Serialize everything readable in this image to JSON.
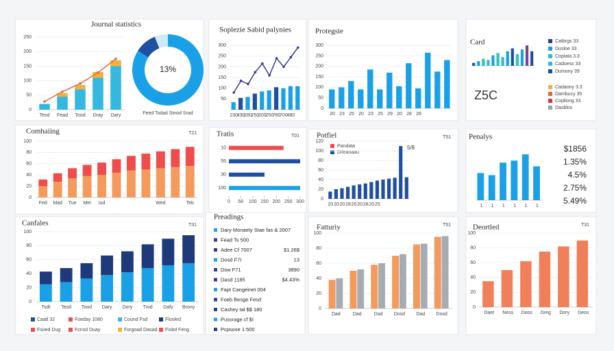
{
  "chart_data": [
    {
      "type": "bar",
      "title": "Journal statistics",
      "stacked": true,
      "categories": [
        "Tesd",
        "Fead",
        "Tood",
        "Dray",
        "Dary"
      ],
      "series": [
        {
          "color": "#35b8e0",
          "values": [
            20,
            45,
            70,
            110,
            150
          ]
        },
        {
          "color": "#f0b23a",
          "values": [
            0,
            12,
            15,
            20,
            20
          ]
        },
        {
          "type": "line",
          "color": "#e8643c",
          "values": [
            28,
            62,
            90,
            128,
            175
          ]
        }
      ],
      "ylim": [
        0,
        260
      ],
      "yticks": [
        0,
        50,
        100,
        150,
        200,
        250
      ]
    },
    {
      "type": "pie",
      "values": [
        84,
        10,
        6
      ],
      "colors": [
        "#1aa0e6",
        "#1f4fa0",
        "#cfe9f7"
      ],
      "center_label": "13%",
      "caption": "Feed Tsdad Stnod Srad"
    },
    {
      "type": "bar",
      "title": "Soplezie Sabid palynies",
      "categories": [
        "230",
        "430",
        "280",
        "250",
        "200",
        "250",
        "780",
        "700",
        "480",
        null
      ],
      "series": [
        {
          "color": "#1aa0e6",
          "colors": [
            "#1aa0e6",
            "#1f4fa0",
            "#1aa0e6",
            "#1f4fa0",
            "#1aa0e6",
            "#1aa0e6",
            "#1f4fa0",
            "#1aa0e6",
            "#1aa0e6",
            "#1aa0e6"
          ],
          "values": [
            35,
            55,
            60,
            75,
            85,
            90,
            105,
            100,
            110,
            110
          ]
        },
        {
          "type": "line",
          "color": "#3a3a8c",
          "values": [
            80,
            135,
            120,
            175,
            215,
            160,
            240,
            200,
            245,
            290
          ]
        }
      ],
      "ylim": [
        0,
        320
      ],
      "yticks": [
        50,
        100,
        150,
        200,
        250,
        300
      ]
    },
    {
      "type": "bar",
      "title": "Protegsie",
      "categories": [
        "20",
        "23",
        "25",
        "20",
        "23",
        "25",
        "29",
        "20",
        "28",
        "28",
        null,
        null,
        null
      ],
      "series": [
        {
          "color": "#1aa0e6",
          "values": [
            90,
            100,
            130,
            90,
            185,
            90,
            170,
            105,
            215,
            95,
            265,
            175,
            230
          ]
        }
      ],
      "ylim": [
        0,
        320
      ],
      "yticks": [
        0,
        50,
        100,
        150,
        200,
        250,
        300
      ]
    },
    {
      "type": "bar",
      "title": "Card",
      "annotation": "Z5C",
      "categories": [
        null,
        null,
        null,
        null,
        null,
        null,
        null,
        null,
        null,
        null,
        null,
        null,
        null
      ],
      "series": [
        {
          "color": "#1aa0e6",
          "colors": [
            "#1f4fa0",
            "#1aa0e6",
            "#2cc4b4",
            "#35b8e0",
            "#1aa0e6",
            "#2cc4b4",
            "#35b8e0",
            "#1aa0e6",
            "#1f4fa0",
            "#2cc4b4",
            "#1aa0e6",
            "#7b3fa0",
            "#1f4fa0"
          ],
          "values": [
            5,
            8,
            12,
            10,
            18,
            22,
            15,
            25,
            30,
            20,
            28,
            35,
            25
          ]
        }
      ],
      "ylim": [
        0,
        40
      ],
      "legend": [
        {
          "label": "Catbrgs 33",
          "color": "#3a3a8c"
        },
        {
          "label": "Dusloe 33",
          "color": "#1aa0e6"
        },
        {
          "label": "Coplata 3.3",
          "color": "#2cc4b4"
        },
        {
          "label": "Cadoess 33",
          "color": "#35b8e0"
        },
        {
          "label": "Dumony 39",
          "color": "#1f4fa0"
        }
      ],
      "legend2": [
        {
          "label": "Cadaony 3.3",
          "color": "#f0b23a"
        },
        {
          "label": "Dambucy 35",
          "color": "#e8643c"
        },
        {
          "label": "Copliong 33",
          "color": "#d33a3a"
        },
        {
          "label": "Dasblos",
          "color": "#9aa0a6"
        }
      ]
    },
    {
      "type": "bar",
      "title": "Comhaiing",
      "corner": "T21",
      "stacked": true,
      "categories": [
        "Fed",
        "Mad",
        "Tue",
        "Mei",
        "Iud",
        null,
        null,
        null,
        "Wed",
        null,
        "Teb"
      ],
      "series": [
        {
          "color": "#f39a5c",
          "values": [
            20,
            28,
            34,
            38,
            40,
            44,
            48,
            50,
            52,
            54,
            56
          ]
        },
        {
          "color": "#ef4c4c",
          "values": [
            12,
            15,
            18,
            20,
            22,
            24,
            26,
            28,
            30,
            32,
            34
          ]
        }
      ],
      "ylim": [
        0,
        100
      ],
      "yticks": [
        0,
        20,
        40,
        60,
        80,
        100
      ]
    },
    {
      "type": "hbar",
      "title": "Tratis",
      "corner": "T01",
      "categories": [
        "10",
        "55",
        "30",
        "100"
      ],
      "series": [
        {
          "color": "#1f4fa0",
          "colors": [
            "#ef4c4c",
            "#1f4fa0",
            "#1f4fa0",
            "#1aa0e6"
          ],
          "values": [
            230,
            300,
            150,
            300
          ]
        }
      ],
      "xlim": [
        0,
        300
      ],
      "xticks": [
        0,
        50,
        100,
        150,
        200,
        250,
        300
      ]
    },
    {
      "type": "bar",
      "title": "Potfiel",
      "corner": "T51",
      "annotation": "5/8",
      "categories": [
        "20",
        "20",
        "20",
        "28",
        "20",
        "20",
        "28",
        "20",
        "25",
        null,
        null,
        null,
        null,
        null
      ],
      "series": [
        {
          "color": "#1f4fa0",
          "values": [
            15,
            20,
            22,
            25,
            28,
            30,
            32,
            35,
            38,
            40,
            42,
            44,
            110,
            45
          ]
        }
      ],
      "ylim": [
        0,
        120
      ],
      "yticks": [
        0,
        20,
        40,
        60,
        80,
        100,
        120
      ],
      "legend": [
        {
          "label": "Pandata",
          "color": "#ef4c4c"
        },
        {
          "label": "Difeanaau",
          "color": "#1f4fa0"
        }
      ]
    },
    {
      "type": "bar",
      "title": "Penalys",
      "categories": [
        "1",
        "1",
        "1",
        "1",
        "1",
        "1"
      ],
      "series": [
        {
          "color": "#1aa0e6",
          "values": [
            52,
            48,
            72,
            76,
            88,
            65
          ]
        }
      ],
      "ylim": [
        0,
        100
      ],
      "stats": [
        "$1856",
        "1.35%",
        "4.5%",
        "2.75%",
        "5.49%"
      ]
    },
    {
      "type": "bar",
      "title": "Canfales",
      "corner": "T31",
      "stacked": true,
      "categories": [
        "Tsdt",
        "Tesd",
        "Tood",
        "Dary",
        "Dory",
        "Trod",
        "Dafy",
        "Brony"
      ],
      "series": [
        {
          "color": "#1aa0e6",
          "values": [
            25,
            28,
            33,
            38,
            42,
            48,
            52,
            55
          ]
        },
        {
          "color": "#1f3a7a",
          "values": [
            18,
            20,
            22,
            28,
            30,
            34,
            38,
            40
          ]
        }
      ],
      "ylim": [
        0,
        100
      ],
      "yticks": [
        0,
        20,
        40,
        60,
        80,
        100
      ],
      "legend": [
        {
          "label": "Caatl 32",
          "color": "#1f4fa0"
        },
        {
          "label": "Foeday 1080",
          "color": "#ef4c4c"
        },
        {
          "label": "Cound Fsd",
          "color": "#35b8e0"
        },
        {
          "label": "Flooled",
          "color": "#1f3a7a"
        },
        {
          "label": "Fsoed Dug",
          "color": "#ef4c4c"
        },
        {
          "label": "Fcnsd Duay",
          "color": "#ef4c4c"
        },
        {
          "label": "Forgoad Dasad",
          "color": "#f0b23a"
        },
        {
          "label": "Fisbd Feng",
          "color": "#ef4c4c"
        }
      ]
    },
    {
      "type": "table",
      "title": "Preadings",
      "rows": [
        [
          "Dary Monaety Stae fas & 2007"
        ],
        [
          "Fead Ts 500"
        ],
        [
          "Adee Cf 7007",
          "$1.26$"
        ],
        [
          "Dosd F7I",
          "13"
        ],
        [
          "Dsw F71",
          "3890"
        ],
        [
          "Dasd 1185",
          "$4.43%"
        ],
        [
          "Fapt Cangeinet 004"
        ],
        [
          "Foeb Besge Fesd"
        ],
        [
          "Cashey tal $$ 180"
        ],
        [
          "Pussrage cf $I"
        ],
        [
          "Pcpsose 1:500"
        ]
      ]
    },
    {
      "type": "bar",
      "title": "Fatturiy",
      "corner": "T51",
      "categories": [
        "Dad",
        "Dad",
        "Dad",
        "Dosd",
        "Dad",
        "Dosd"
      ],
      "series": [
        {
          "color": "#f39a5c",
          "values": [
            38,
            50,
            58,
            70,
            85,
            95
          ]
        },
        {
          "color": "#a7acb3",
          "values": [
            40,
            52,
            60,
            72,
            86,
            96
          ]
        }
      ],
      "ylim": [
        0,
        100
      ],
      "yticks": [
        0,
        20,
        40,
        60,
        80,
        100
      ]
    },
    {
      "type": "bar",
      "title": "Deortled",
      "corner": "T31",
      "categories": [
        "Daet",
        "Ness",
        "Doos",
        "Dreg",
        "Dory",
        "Deos"
      ],
      "series": [
        {
          "color": "#f07f5a",
          "values": [
            35,
            50,
            62,
            75,
            82,
            90
          ]
        }
      ],
      "ylim": [
        0,
        100
      ],
      "yticks": [
        0,
        20,
        40,
        60,
        80,
        100
      ]
    }
  ]
}
